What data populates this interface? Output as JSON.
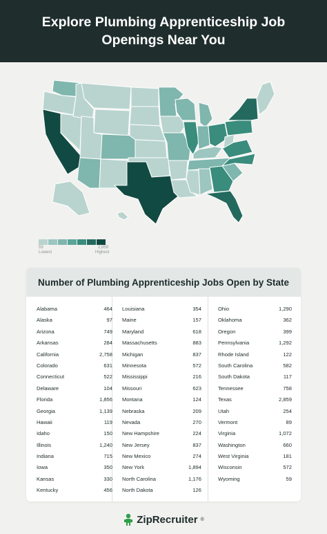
{
  "title": "Explore Plumbing Apprenticeship Job Openings Near You",
  "legend": {
    "min_label": "59",
    "max_label": "2,859",
    "low_label": "Lowest",
    "high_label": "Highest",
    "colors": [
      "#b9d4cf",
      "#9cc6bf",
      "#7fb6ad",
      "#5aa597",
      "#3a8c7d",
      "#23695e",
      "#114a42"
    ]
  },
  "table": {
    "heading": "Number of Plumbing Apprenticeship Jobs Open by State",
    "columns": [
      [
        {
          "state": "Alabama",
          "jobs": "464"
        },
        {
          "state": "Alaska",
          "jobs": "97"
        },
        {
          "state": "Arizona",
          "jobs": "749"
        },
        {
          "state": "Arkansas",
          "jobs": "284"
        },
        {
          "state": "California",
          "jobs": "2,758"
        },
        {
          "state": "Colorado",
          "jobs": "631"
        },
        {
          "state": "Connecticut",
          "jobs": "522"
        },
        {
          "state": "Delaware",
          "jobs": "104"
        },
        {
          "state": "Florida",
          "jobs": "1,856"
        },
        {
          "state": "Georgia",
          "jobs": "1,139"
        },
        {
          "state": "Hawaii",
          "jobs": "119"
        },
        {
          "state": "Idaho",
          "jobs": "150"
        },
        {
          "state": "Illinois",
          "jobs": "1,240"
        },
        {
          "state": "Indiana",
          "jobs": "715"
        },
        {
          "state": "Iowa",
          "jobs": "350"
        },
        {
          "state": "Kansas",
          "jobs": "330"
        },
        {
          "state": "Kentucky",
          "jobs": "456"
        }
      ],
      [
        {
          "state": "Louisiana",
          "jobs": "354"
        },
        {
          "state": "Maine",
          "jobs": "157"
        },
        {
          "state": "Maryland",
          "jobs": "618"
        },
        {
          "state": "Massachusetts",
          "jobs": "883"
        },
        {
          "state": "Michigan",
          "jobs": "837"
        },
        {
          "state": "Minnesota",
          "jobs": "572"
        },
        {
          "state": "Mississippi",
          "jobs": "216"
        },
        {
          "state": "Missouri",
          "jobs": "623"
        },
        {
          "state": "Montana",
          "jobs": "124"
        },
        {
          "state": "Nebraska",
          "jobs": "209"
        },
        {
          "state": "Nevada",
          "jobs": "270"
        },
        {
          "state": "New Hampshire",
          "jobs": "224"
        },
        {
          "state": "New Jersey",
          "jobs": "837"
        },
        {
          "state": "New Mexico",
          "jobs": "274"
        },
        {
          "state": "New York",
          "jobs": "1,894"
        },
        {
          "state": "North Carolina",
          "jobs": "1,176"
        },
        {
          "state": "North Dakota",
          "jobs": "126"
        }
      ],
      [
        {
          "state": "Ohio",
          "jobs": "1,290"
        },
        {
          "state": "Oklahoma",
          "jobs": "362"
        },
        {
          "state": "Oregon",
          "jobs": "399"
        },
        {
          "state": "Pennsylvania",
          "jobs": "1,292"
        },
        {
          "state": "Rhode Island",
          "jobs": "122"
        },
        {
          "state": "South Carolina",
          "jobs": "582"
        },
        {
          "state": "South Dakota",
          "jobs": "117"
        },
        {
          "state": "Tennessee",
          "jobs": "758"
        },
        {
          "state": "Texas",
          "jobs": "2,859"
        },
        {
          "state": "Utah",
          "jobs": "254"
        },
        {
          "state": "Vermont",
          "jobs": "89"
        },
        {
          "state": "Virginia",
          "jobs": "1,072"
        },
        {
          "state": "Washington",
          "jobs": "660"
        },
        {
          "state": "West Virginia",
          "jobs": "181"
        },
        {
          "state": "Wisconsin",
          "jobs": "572"
        },
        {
          "state": "Wyoming",
          "jobs": "59"
        }
      ]
    ]
  },
  "map_regions": [
    {
      "name": "Washington",
      "color": "#7fb6ad"
    },
    {
      "name": "Oregon",
      "color": "#b9d4cf"
    },
    {
      "name": "California",
      "color": "#114a42"
    },
    {
      "name": "Nevada",
      "color": "#b9d4cf"
    },
    {
      "name": "Idaho",
      "color": "#b9d4cf"
    },
    {
      "name": "Montana",
      "color": "#b9d4cf"
    },
    {
      "name": "Wyoming",
      "color": "#b9d4cf"
    },
    {
      "name": "Utah",
      "color": "#b9d4cf"
    },
    {
      "name": "Arizona",
      "color": "#7fb6ad"
    },
    {
      "name": "Colorado",
      "color": "#7fb6ad"
    },
    {
      "name": "New Mexico",
      "color": "#b9d4cf"
    },
    {
      "name": "North Dakota",
      "color": "#b9d4cf"
    },
    {
      "name": "South Dakota",
      "color": "#b9d4cf"
    },
    {
      "name": "Nebraska",
      "color": "#b9d4cf"
    },
    {
      "name": "Kansas",
      "color": "#b9d4cf"
    },
    {
      "name": "Oklahoma",
      "color": "#b9d4cf"
    },
    {
      "name": "Texas",
      "color": "#114a42"
    },
    {
      "name": "Minnesota",
      "color": "#7fb6ad"
    },
    {
      "name": "Iowa",
      "color": "#b9d4cf"
    },
    {
      "name": "Missouri",
      "color": "#7fb6ad"
    },
    {
      "name": "Arkansas",
      "color": "#b9d4cf"
    },
    {
      "name": "Louisiana",
      "color": "#b9d4cf"
    },
    {
      "name": "Wisconsin",
      "color": "#7fb6ad"
    },
    {
      "name": "Illinois",
      "color": "#3a8c7d"
    },
    {
      "name": "Michigan",
      "color": "#7fb6ad"
    },
    {
      "name": "Indiana",
      "color": "#7fb6ad"
    },
    {
      "name": "Ohio",
      "color": "#3a8c7d"
    },
    {
      "name": "Kentucky",
      "color": "#9cc6bf"
    },
    {
      "name": "Tennessee",
      "color": "#7fb6ad"
    },
    {
      "name": "Mississippi",
      "color": "#b9d4cf"
    },
    {
      "name": "Alabama",
      "color": "#9cc6bf"
    },
    {
      "name": "Georgia",
      "color": "#3a8c7d"
    },
    {
      "name": "Florida",
      "color": "#23695e"
    },
    {
      "name": "South Carolina",
      "color": "#7fb6ad"
    },
    {
      "name": "North Carolina",
      "color": "#3a8c7d"
    },
    {
      "name": "Virginia",
      "color": "#3a8c7d"
    },
    {
      "name": "West Virginia",
      "color": "#b9d4cf"
    },
    {
      "name": "Pennsylvania",
      "color": "#3a8c7d"
    },
    {
      "name": "New York",
      "color": "#23695e"
    },
    {
      "name": "New England",
      "color": "#b9d4cf"
    },
    {
      "name": "Alaska",
      "color": "#b9d4cf"
    },
    {
      "name": "Hawaii",
      "color": "#b9d4cf"
    }
  ],
  "footer": {
    "brand": "ZipRecruiter",
    "brand_mark": "®"
  }
}
